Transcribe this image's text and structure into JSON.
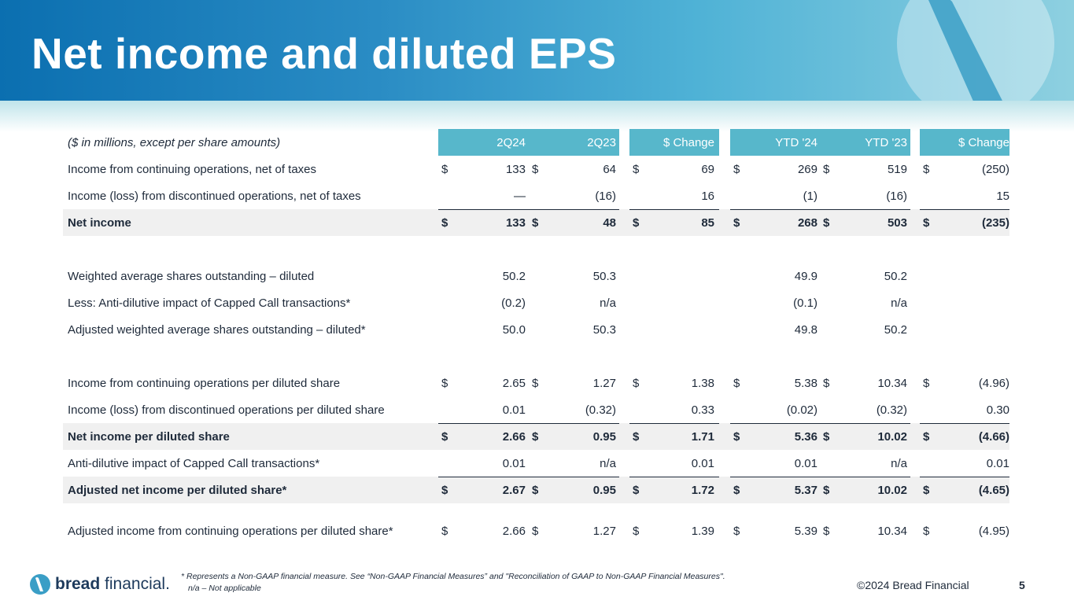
{
  "page_title": "Net income and diluted EPS",
  "table": {
    "units_label": "($ in millions, except per share amounts)",
    "columns": [
      "2Q24",
      "2Q23",
      "$ Change",
      "YTD '24",
      "YTD '23",
      "$ Change"
    ],
    "currency_symbol": "$",
    "rows": [
      {
        "label": "Income from continuing operations, net of taxes",
        "values": [
          "133",
          "64",
          "69",
          "269",
          "519",
          "(250)"
        ]
      },
      {
        "label": "Income (loss) from discontinued operations, net of taxes",
        "values": [
          "—",
          "(16)",
          "16",
          "(1)",
          "(16)",
          "15"
        ]
      },
      {
        "label": "Net income",
        "values": [
          "133",
          "48",
          "85",
          "268",
          "503",
          "(235)"
        ]
      },
      {
        "label": "Weighted average shares outstanding – diluted",
        "values": [
          "50.2",
          "50.3",
          "",
          "49.9",
          "50.2",
          ""
        ]
      },
      {
        "label": "Less: Anti-dilutive impact of Capped Call transactions*",
        "values": [
          "(0.2)",
          "n/a",
          "",
          "(0.1)",
          "n/a",
          ""
        ]
      },
      {
        "label": "Adjusted weighted average shares outstanding – diluted*",
        "values": [
          "50.0",
          "50.3",
          "",
          "49.8",
          "50.2",
          ""
        ]
      },
      {
        "label": "Income from continuing operations per diluted share",
        "values": [
          "2.65",
          "1.27",
          "1.38",
          "5.38",
          "10.34",
          "(4.96)"
        ]
      },
      {
        "label": "Income (loss) from discontinued operations per diluted share",
        "values": [
          "0.01",
          "(0.32)",
          "0.33",
          "(0.02)",
          "(0.32)",
          "0.30"
        ]
      },
      {
        "label": "Net income per diluted share",
        "values": [
          "2.66",
          "0.95",
          "1.71",
          "5.36",
          "10.02",
          "(4.66)"
        ]
      },
      {
        "label": "Anti-dilutive impact of Capped Call transactions*",
        "values": [
          "0.01",
          "n/a",
          "0.01",
          "0.01",
          "n/a",
          "0.01"
        ]
      },
      {
        "label": "Adjusted net income per diluted share*",
        "values": [
          "2.67",
          "0.95",
          "1.72",
          "5.37",
          "10.02",
          "(4.65)"
        ]
      },
      {
        "label": "Adjusted income from continuing operations per diluted share*",
        "values": [
          "2.66",
          "1.27",
          "1.39",
          "5.39",
          "10.34",
          "(4.95)"
        ]
      }
    ]
  },
  "footnotes": {
    "non_gaap": "* Represents a Non-GAAP financial measure. See “Non-GAAP Financial Measures” and \"Reconciliation of GAAP to Non-GAAP Financial Measures\".",
    "na": "n/a – Not applicable"
  },
  "footer": {
    "brand_bold": "bread",
    "brand_light": "financial",
    "brand_mark": ".",
    "copyright": "©2024 Bread Financial",
    "page_number": "5"
  },
  "colors": {
    "header_fill": "#57b7cb",
    "highlight_fill": "#f0f0f0",
    "banner_start": "#0b6fb0",
    "text": "#1e2a3a"
  }
}
